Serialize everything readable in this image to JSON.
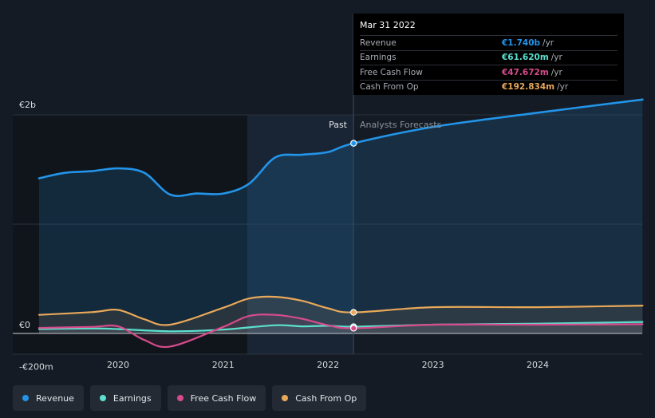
{
  "tooltip": {
    "date": "Mar 31 2022",
    "rows": [
      {
        "label": "Revenue",
        "value": "€1.740b",
        "unit": "/yr",
        "color": "#2394e8"
      },
      {
        "label": "Earnings",
        "value": "€61.620m",
        "unit": "/yr",
        "color": "#5ce0cf"
      },
      {
        "label": "Free Cash Flow",
        "value": "€47.672m",
        "unit": "/yr",
        "color": "#d64b8c"
      },
      {
        "label": "Cash From Op",
        "value": "€192.834m",
        "unit": "/yr",
        "color": "#e8a85a"
      }
    ]
  },
  "legend": [
    {
      "label": "Revenue",
      "color": "#2394e8"
    },
    {
      "label": "Earnings",
      "color": "#5ce0cf"
    },
    {
      "label": "Free Cash Flow",
      "color": "#d64b8c"
    },
    {
      "label": "Cash From Op",
      "color": "#e8a85a"
    }
  ],
  "chart_data": {
    "type": "line",
    "y_tick_labels": [
      "€2b",
      "€0",
      "-€200m"
    ],
    "x_tick_labels": [
      "2020",
      "2021",
      "2022",
      "2023",
      "2024"
    ],
    "ylim": [
      -200,
      2000
    ],
    "y_unit": "€m",
    "xlim": [
      "2019-04-01",
      "2024-12-31"
    ],
    "past_label": "Past",
    "forecast_label": "Analysts Forecasts",
    "forecast_start": "2021-03-31",
    "current_date": "2022-03-31",
    "legend_position": "bottom",
    "series": [
      {
        "name": "Revenue",
        "color": "#2394e8",
        "x": [
          "2019-04-01",
          "2019-07-01",
          "2019-10-01",
          "2020-01-01",
          "2020-04-01",
          "2020-07-01",
          "2020-10-01",
          "2021-01-01",
          "2021-04-01",
          "2021-07-01",
          "2021-10-01",
          "2022-01-01",
          "2022-03-31",
          "2023-01-01",
          "2024-01-01",
          "2024-12-31"
        ],
        "y": [
          1420,
          1470,
          1485,
          1510,
          1470,
          1270,
          1280,
          1280,
          1370,
          1610,
          1635,
          1660,
          1740,
          1890,
          2020,
          2140
        ]
      },
      {
        "name": "Earnings",
        "color": "#5ce0cf",
        "x": [
          "2019-04-01",
          "2019-10-01",
          "2020-01-01",
          "2020-07-01",
          "2021-01-01",
          "2021-07-01",
          "2021-10-01",
          "2022-01-01",
          "2022-03-31",
          "2023-01-01",
          "2024-01-01",
          "2024-12-31"
        ],
        "y": [
          40,
          45,
          40,
          20,
          35,
          75,
          65,
          70,
          61.6,
          80,
          90,
          105
        ]
      },
      {
        "name": "Free Cash Flow",
        "color": "#d64b8c",
        "x": [
          "2019-04-01",
          "2019-10-01",
          "2020-01-01",
          "2020-04-01",
          "2020-07-01",
          "2021-01-01",
          "2021-04-01",
          "2021-07-01",
          "2021-10-01",
          "2022-01-01",
          "2022-03-31",
          "2023-01-01",
          "2024-01-01",
          "2024-12-31"
        ],
        "y": [
          50,
          60,
          65,
          -60,
          -120,
          60,
          160,
          170,
          135,
          75,
          47.7,
          80,
          80,
          85
        ]
      },
      {
        "name": "Cash From Op",
        "color": "#e8a85a",
        "x": [
          "2019-04-01",
          "2019-10-01",
          "2020-01-01",
          "2020-04-01",
          "2020-07-01",
          "2021-01-01",
          "2021-04-01",
          "2021-07-01",
          "2021-10-01",
          "2022-01-01",
          "2022-03-31",
          "2023-01-01",
          "2024-01-01",
          "2024-12-31"
        ],
        "y": [
          170,
          195,
          215,
          130,
          80,
          235,
          320,
          335,
          300,
          230,
          192.8,
          240,
          240,
          255
        ]
      }
    ]
  }
}
